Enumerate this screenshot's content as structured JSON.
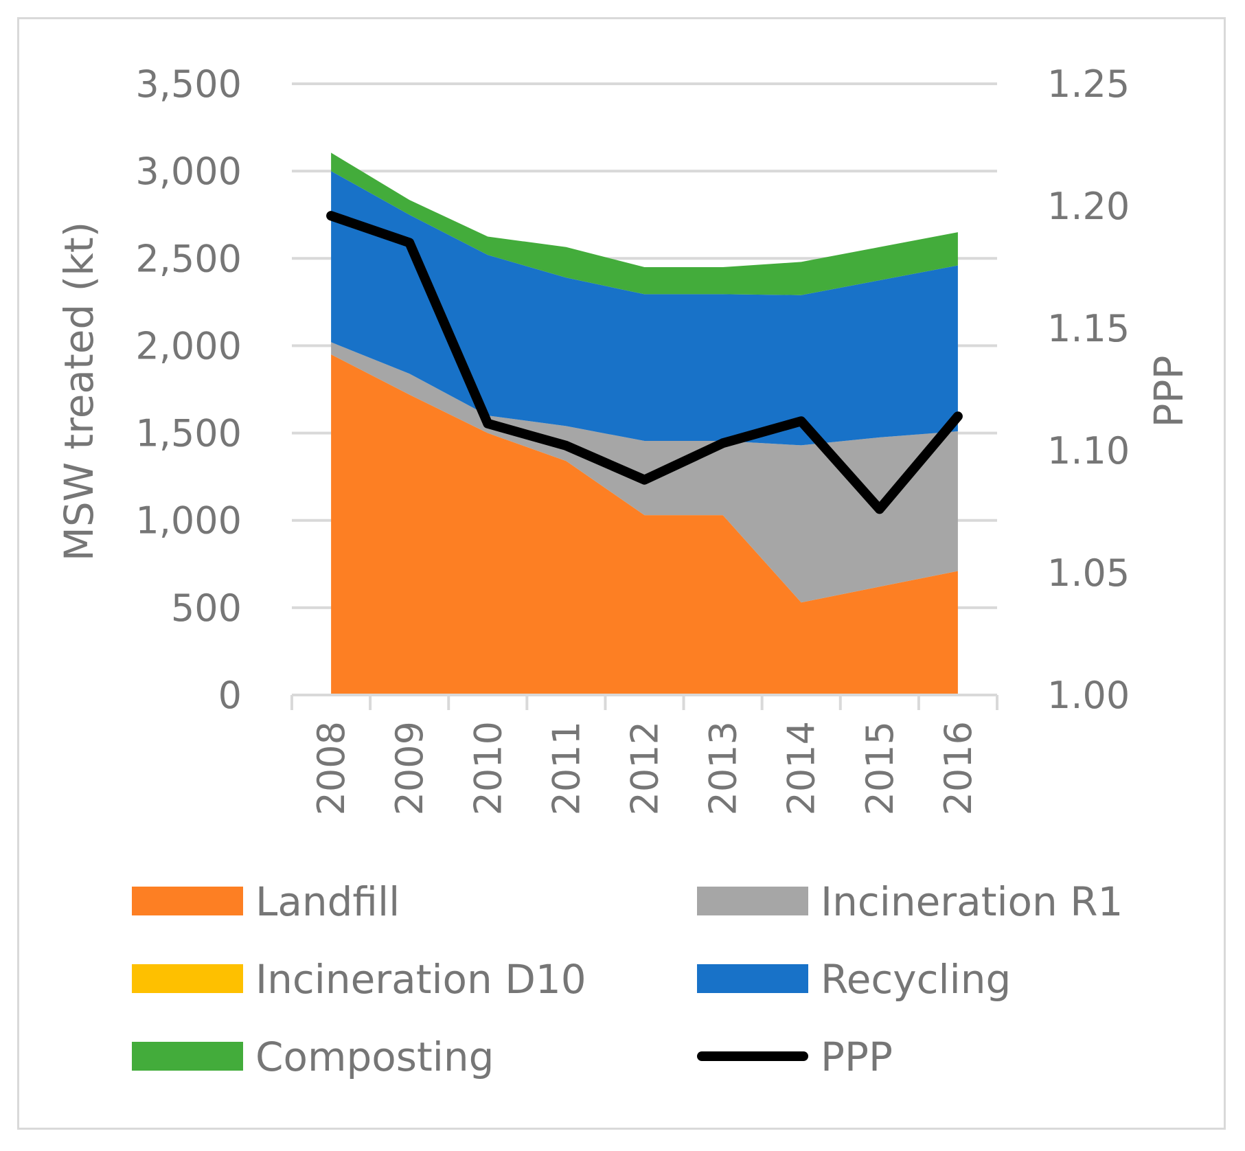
{
  "chart_data": {
    "type": "area",
    "stacked": true,
    "x": [
      "2008",
      "2009",
      "2010",
      "2011",
      "2012",
      "2013",
      "2014",
      "2015",
      "2016"
    ],
    "series": [
      {
        "name": "Landfill",
        "values": [
          1950,
          1720,
          1500,
          1340,
          1030,
          1030,
          530,
          620,
          710
        ],
        "color": "#fd7f23",
        "axis": "left"
      },
      {
        "name": "Incineration R1",
        "values": [
          70,
          120,
          100,
          200,
          425,
          425,
          900,
          855,
          800
        ],
        "color": "#a6a6a6",
        "axis": "left"
      },
      {
        "name": "Incineration D10",
        "values": [
          0,
          0,
          0,
          0,
          0,
          0,
          0,
          0,
          0
        ],
        "color": "#fec000",
        "axis": "left"
      },
      {
        "name": "Recycling",
        "values": [
          980,
          910,
          920,
          850,
          840,
          840,
          860,
          900,
          950
        ],
        "color": "#1872c8",
        "axis": "left"
      },
      {
        "name": "Composting",
        "values": [
          105,
          85,
          105,
          175,
          155,
          155,
          190,
          190,
          190
        ],
        "color": "#43ac3b",
        "axis": "left"
      }
    ],
    "line": {
      "name": "PPP",
      "values": [
        1.196,
        1.185,
        1.111,
        1.102,
        1.088,
        1.103,
        1.112,
        1.076,
        1.114
      ],
      "color": "#000000",
      "axis": "right"
    },
    "ylabel": "MSW treated (kt)",
    "ylabel_right": "PPP",
    "ylim": [
      0,
      3500
    ],
    "ylim_right": [
      1.0,
      1.25
    ],
    "yticks": [
      "0",
      "500",
      "1,000",
      "1,500",
      "2,000",
      "2,500",
      "3,000",
      "3,500"
    ],
    "yticks_right": [
      "1.00",
      "1.05",
      "1.10",
      "1.15",
      "1.20",
      "1.25"
    ],
    "grid": true,
    "legend_position": "bottom"
  }
}
